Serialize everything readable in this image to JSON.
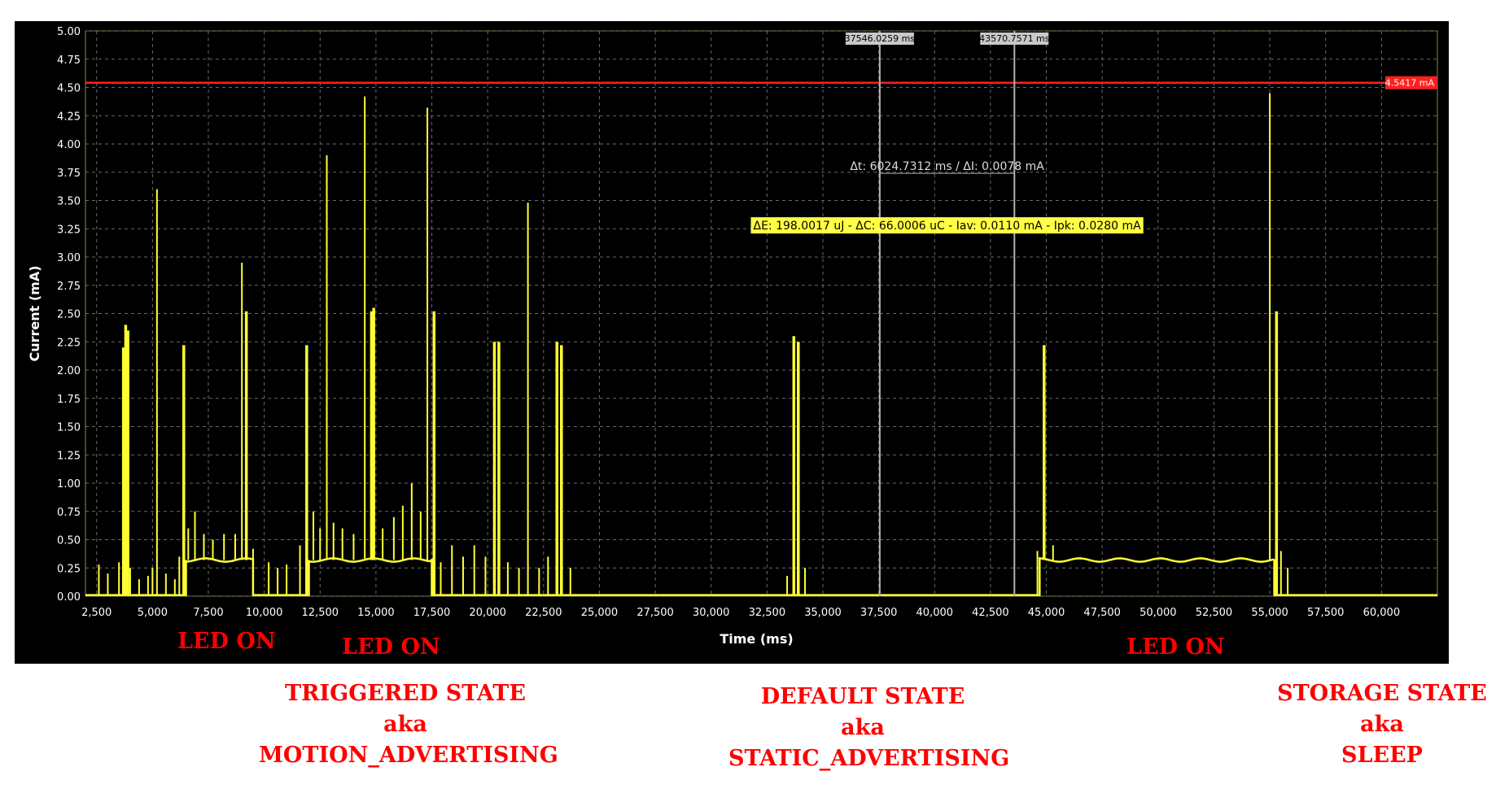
{
  "chart_data": {
    "type": "line",
    "xlabel": "Time (ms)",
    "ylabel": "Current (mA)",
    "xlim": [
      2000,
      62500
    ],
    "ylim": [
      0,
      5
    ],
    "grid": true,
    "x_ticks": [
      "2,500",
      "5,000",
      "7,500",
      "10,000",
      "12,500",
      "15,000",
      "17,500",
      "20,000",
      "22,500",
      "25,000",
      "27,500",
      "30,000",
      "32,500",
      "35,000",
      "37,500",
      "40,000",
      "42,500",
      "45,000",
      "47,500",
      "50,000",
      "52,500",
      "55,000",
      "57,500",
      "60,000"
    ],
    "y_ticks": [
      "0.00",
      "0.25",
      "0.50",
      "0.75",
      "1.00",
      "1.25",
      "1.50",
      "1.75",
      "2.00",
      "2.25",
      "2.50",
      "2.75",
      "3.00",
      "3.25",
      "3.50",
      "3.75",
      "4.00",
      "4.25",
      "4.50",
      "4.75",
      "5.00"
    ],
    "series": [
      {
        "color": "#ffff33",
        "baseline": 0.01,
        "led_on_segments": [
          [
            6500,
            9500,
            0.32
          ],
          [
            12000,
            17500,
            0.32
          ],
          [
            44700,
            55200,
            0.32
          ]
        ],
        "spikes": [
          [
            2600,
            0.28
          ],
          [
            3000,
            0.2
          ],
          [
            3500,
            0.3
          ],
          [
            3700,
            2.2
          ],
          [
            3800,
            2.4
          ],
          [
            3900,
            2.35
          ],
          [
            4000,
            0.25
          ],
          [
            4400,
            0.15
          ],
          [
            4800,
            0.18
          ],
          [
            5000,
            0.25
          ],
          [
            5200,
            3.6
          ],
          [
            5600,
            0.2
          ],
          [
            6000,
            0.15
          ],
          [
            6200,
            0.35
          ],
          [
            6400,
            2.22
          ],
          [
            6600,
            0.6
          ],
          [
            6900,
            0.75
          ],
          [
            7300,
            0.55
          ],
          [
            7700,
            0.5
          ],
          [
            8200,
            0.55
          ],
          [
            8700,
            0.55
          ],
          [
            9000,
            2.95
          ],
          [
            9200,
            2.52
          ],
          [
            9500,
            0.42
          ],
          [
            10200,
            0.3
          ],
          [
            10600,
            0.25
          ],
          [
            11000,
            0.28
          ],
          [
            11600,
            0.45
          ],
          [
            11900,
            2.22
          ],
          [
            12200,
            0.75
          ],
          [
            12500,
            0.6
          ],
          [
            12800,
            3.9
          ],
          [
            13100,
            0.65
          ],
          [
            13500,
            0.6
          ],
          [
            14000,
            0.55
          ],
          [
            14500,
            4.42
          ],
          [
            14800,
            2.52
          ],
          [
            14900,
            2.55
          ],
          [
            15300,
            0.6
          ],
          [
            15800,
            0.7
          ],
          [
            16200,
            0.8
          ],
          [
            16600,
            1.0
          ],
          [
            17000,
            0.75
          ],
          [
            17300,
            4.32
          ],
          [
            17600,
            2.52
          ],
          [
            17900,
            0.3
          ],
          [
            18400,
            0.45
          ],
          [
            18900,
            0.35
          ],
          [
            19400,
            0.45
          ],
          [
            19900,
            0.35
          ],
          [
            20300,
            2.25
          ],
          [
            20500,
            2.25
          ],
          [
            20900,
            0.3
          ],
          [
            21400,
            0.25
          ],
          [
            21800,
            3.48
          ],
          [
            22300,
            0.25
          ],
          [
            22700,
            0.35
          ],
          [
            23100,
            2.25
          ],
          [
            23300,
            2.22
          ],
          [
            23700,
            0.25
          ],
          [
            33400,
            0.18
          ],
          [
            33700,
            2.3
          ],
          [
            33900,
            2.25
          ],
          [
            34200,
            0.25
          ],
          [
            44600,
            0.4
          ],
          [
            44900,
            2.22
          ],
          [
            45300,
            0.45
          ],
          [
            55000,
            4.45
          ],
          [
            55300,
            2.52
          ],
          [
            55500,
            0.4
          ],
          [
            55800,
            0.25
          ]
        ]
      }
    ],
    "limit_line": {
      "value": 4.5417,
      "label": "4.5417 mA",
      "color": "#ff2020"
    },
    "cursors": [
      {
        "x": 37546.0259,
        "label": "37546.0259 ms"
      },
      {
        "x": 43570.7571,
        "label": "43570.7571 ms"
      }
    ],
    "delta_label": "Δt: 6024.7312 ms / ΔI: 0.0078 mA",
    "stats_label": "ΔE: 198.0017 uJ - ΔC: 66.0006 uC - Iav: 0.0110 mA - Ipk: 0.0280 mA"
  },
  "annotations": {
    "led_on_1": "LED ON",
    "led_on_2": "LED ON",
    "led_on_3": "LED ON",
    "triggered": [
      "TRIGGERED STATE",
      "aka",
      "MOTION_ADVERTISING"
    ],
    "default": [
      "DEFAULT STATE",
      "aka",
      "STATIC_ADVERTISING"
    ],
    "storage": [
      "STORAGE STATE",
      "aka",
      "SLEEP"
    ],
    "color": "#ff0000"
  }
}
